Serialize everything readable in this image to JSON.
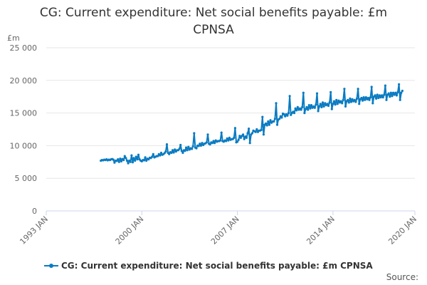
{
  "chart_data": {
    "type": "line",
    "title_line1": "CG: Current expenditure: Net social benefits payable: £m",
    "title_line2": "CPNSA",
    "ylabel_unit": "£m",
    "ylim": [
      0,
      25000
    ],
    "yticks": [
      0,
      5000,
      10000,
      15000,
      20000,
      25000
    ],
    "ytick_labels": [
      "0",
      "5 000",
      "10 000",
      "15 000",
      "20 000",
      "25 000"
    ],
    "xlim": [
      1993.0,
      2020.0
    ],
    "xticks": [
      1993.0,
      2000.0,
      2007.0,
      2014.0,
      2020.0
    ],
    "xtick_labels": [
      "1993 JAN",
      "2000 JAN",
      "2007 JAN",
      "2014 JAN",
      "2020 JAN"
    ],
    "series": [
      {
        "name": "CG: Current expenditure: Net social benefits payable: £m CPNSA",
        "color": "#0a7bc1",
        "note": "monthly values Jan 1997 – Jan 2020, estimated from chart",
        "start_year": 1997.0,
        "step_years": 0.0833333,
        "values": [
          7700,
          7800,
          7750,
          7850,
          7800,
          7900,
          7750,
          7850,
          7800,
          7900,
          7950,
          7850,
          7400,
          7700,
          7650,
          7900,
          7500,
          8000,
          7600,
          7950,
          7800,
          8400,
          8100,
          7700,
          7300,
          7700,
          7500,
          8500,
          7450,
          8100,
          7700,
          8300,
          7900,
          8600,
          7900,
          7700,
          7600,
          7800,
          7750,
          8200,
          7700,
          8000,
          7900,
          8150,
          8100,
          8300,
          8700,
          8200,
          8300,
          8400,
          8400,
          8700,
          8500,
          8900,
          8600,
          8700,
          8850,
          9100,
          10200,
          8900,
          8700,
          9000,
          8900,
          9300,
          8950,
          9400,
          9100,
          9300,
          9300,
          9500,
          10100,
          9200,
          8900,
          9300,
          9200,
          9700,
          9300,
          9800,
          9400,
          9600,
          9500,
          9900,
          11900,
          9700,
          9600,
          10000,
          9950,
          10300,
          10000,
          10400,
          10100,
          10300,
          10350,
          10500,
          11700,
          10300,
          10200,
          10500,
          10400,
          10700,
          10400,
          10800,
          10600,
          10700,
          10700,
          10800,
          12000,
          10700,
          10600,
          10800,
          10700,
          11100,
          10800,
          11200,
          10900,
          11000,
          11000,
          11200,
          12700,
          10500,
          10600,
          10900,
          11500,
          11200,
          11500,
          11700,
          11000,
          11400,
          11200,
          11900,
          12600,
          10400,
          11700,
          11900,
          12300,
          12200,
          12100,
          12500,
          12100,
          12300,
          12300,
          12400,
          14400,
          11700,
          13200,
          13400,
          13100,
          13700,
          13200,
          13900,
          13500,
          13700,
          13700,
          14100,
          16500,
          13200,
          14000,
          14100,
          14500,
          14300,
          14900,
          14800,
          14500,
          14800,
          14600,
          15000,
          17600,
          14700,
          15000,
          15200,
          15000,
          15700,
          15400,
          15900,
          15500,
          15700,
          15500,
          15900,
          18100,
          15000,
          15600,
          15900,
          15500,
          16200,
          15700,
          16200,
          15800,
          16000,
          15800,
          16300,
          18000,
          15300,
          16000,
          16400,
          15900,
          16600,
          16000,
          16500,
          16200,
          16400,
          16100,
          16600,
          18200,
          15600,
          16400,
          16800,
          16300,
          17000,
          16400,
          16900,
          16600,
          16800,
          16500,
          17000,
          18700,
          16000,
          16800,
          17000,
          16600,
          17200,
          16700,
          17100,
          16800,
          17000,
          16700,
          17200,
          18700,
          16400,
          17100,
          17300,
          16900,
          17400,
          17000,
          17400,
          17100,
          17300,
          17000,
          17400,
          19000,
          16500,
          17500,
          17700,
          17200,
          17800,
          17300,
          17700,
          17400,
          17700,
          17400,
          17800,
          19200,
          17000,
          17800,
          18000,
          17500,
          18100,
          17600,
          18100,
          17800,
          18100,
          17700,
          18200,
          19400,
          17000,
          18100,
          18400
        ]
      }
    ],
    "legend": "CG: Current expenditure: Net social benefits payable: £m CPNSA",
    "source_label": "Source:"
  }
}
